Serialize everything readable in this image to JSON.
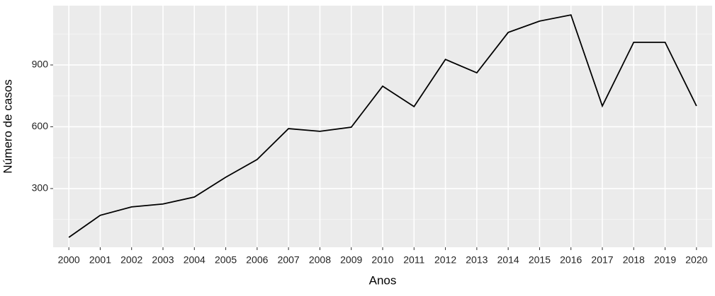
{
  "chart_data": {
    "type": "line",
    "x_label": "Anos",
    "y_label": "Número de casos",
    "x": [
      2000,
      2001,
      2002,
      2003,
      2004,
      2005,
      2006,
      2007,
      2008,
      2009,
      2010,
      2011,
      2012,
      2013,
      2014,
      2015,
      2016,
      2017,
      2018,
      2019,
      2020
    ],
    "values": [
      63,
      170,
      211,
      225,
      259,
      355,
      441,
      591,
      578,
      598,
      797,
      698,
      927,
      862,
      1058,
      1113,
      1143,
      701,
      1010,
      1010,
      701
    ],
    "color": "#000000",
    "xlim": [
      1999.5,
      2020.5
    ],
    "xticks": [
      2000,
      2001,
      2002,
      2003,
      2004,
      2005,
      2006,
      2007,
      2008,
      2009,
      2010,
      2011,
      2012,
      2013,
      2014,
      2015,
      2016,
      2017,
      2018,
      2019,
      2020
    ],
    "ylim": [
      15,
      1188
    ],
    "yticks": [
      300,
      600,
      900
    ],
    "grid": true
  }
}
